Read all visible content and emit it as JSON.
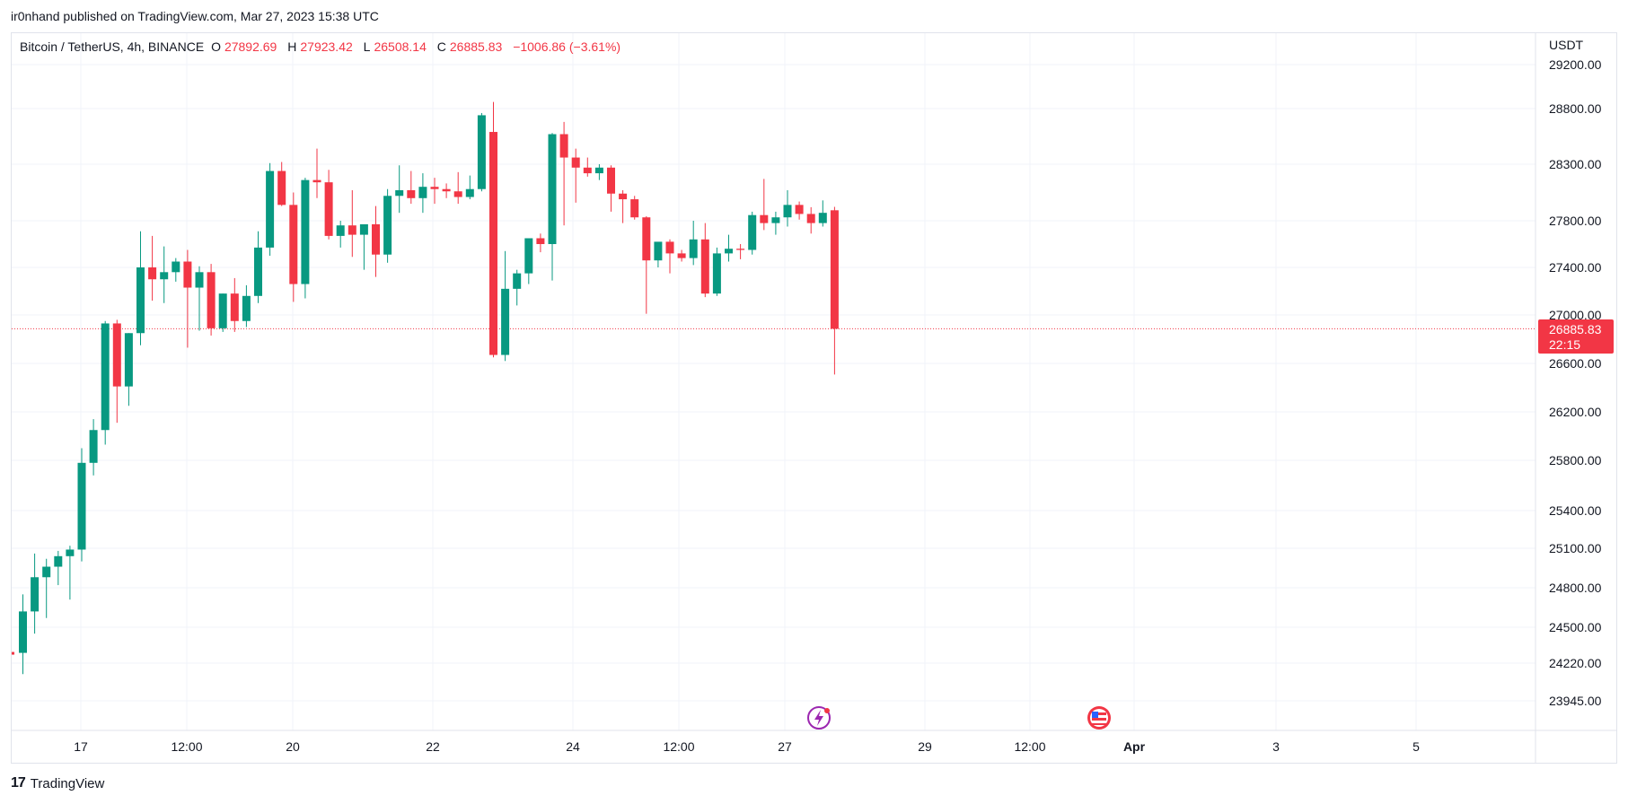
{
  "header": {
    "published": "ir0nhand published on TradingView.com, Mar 27, 2023 15:38 UTC"
  },
  "legend": {
    "symbol": "Bitcoin / TetherUS, 4h, BINANCE",
    "o_label": "O",
    "o_value": "27892.69",
    "h_label": "H",
    "h_value": "27923.42",
    "l_label": "L",
    "l_value": "26508.14",
    "c_label": "C",
    "c_value": "26885.83",
    "change": "−1006.86 (−3.61%)"
  },
  "footer": {
    "brand": "TradingView",
    "logo_mark": "17"
  },
  "colors": {
    "up": "#089981",
    "down": "#f23645",
    "grid": "#f0f3fa",
    "text": "#131722"
  },
  "chart_data": {
    "type": "candlestick",
    "symbol": "Bitcoin / TetherUS",
    "interval": "4h",
    "exchange": "BINANCE",
    "currency": "USDT",
    "y_ticks": [
      "29200.00",
      "28800.00",
      "28300.00",
      "27800.00",
      "27400.00",
      "27000.00",
      "26600.00",
      "26200.00",
      "25800.00",
      "25400.00",
      "25100.00",
      "24800.00",
      "24500.00",
      "24220.00",
      "23945.00"
    ],
    "x_ticks": [
      "17",
      "12:00",
      "20",
      "22",
      "24",
      "12:00",
      "27",
      "29",
      "12:00",
      "Apr",
      "3",
      "5"
    ],
    "last_price": "26885.83",
    "countdown": "22:15",
    "candles": [
      {
        "o": 24300,
        "h": 24750,
        "l": 24140,
        "c": 24620
      },
      {
        "o": 24620,
        "h": 25060,
        "l": 24450,
        "c": 24880
      },
      {
        "o": 24880,
        "h": 25020,
        "l": 24570,
        "c": 24960
      },
      {
        "o": 24960,
        "h": 25080,
        "l": 24820,
        "c": 25040
      },
      {
        "o": 25040,
        "h": 25120,
        "l": 24710,
        "c": 25090
      },
      {
        "o": 25090,
        "h": 25900,
        "l": 25000,
        "c": 25780
      },
      {
        "o": 25780,
        "h": 26140,
        "l": 25680,
        "c": 26050
      },
      {
        "o": 26050,
        "h": 26950,
        "l": 25930,
        "c": 26930
      },
      {
        "o": 26930,
        "h": 26960,
        "l": 26110,
        "c": 26410
      },
      {
        "o": 26410,
        "h": 26850,
        "l": 26250,
        "c": 26850
      },
      {
        "o": 26850,
        "h": 27710,
        "l": 26750,
        "c": 27400
      },
      {
        "o": 27400,
        "h": 27670,
        "l": 27120,
        "c": 27300
      },
      {
        "o": 27300,
        "h": 27580,
        "l": 27100,
        "c": 27360
      },
      {
        "o": 27360,
        "h": 27480,
        "l": 27280,
        "c": 27450
      },
      {
        "o": 27450,
        "h": 27550,
        "l": 26730,
        "c": 27230
      },
      {
        "o": 27230,
        "h": 27410,
        "l": 26870,
        "c": 27360
      },
      {
        "o": 27360,
        "h": 27430,
        "l": 26830,
        "c": 26890
      },
      {
        "o": 26890,
        "h": 27180,
        "l": 26860,
        "c": 27180
      },
      {
        "o": 27180,
        "h": 27310,
        "l": 26860,
        "c": 26950
      },
      {
        "o": 26950,
        "h": 27250,
        "l": 26900,
        "c": 27160
      },
      {
        "o": 27160,
        "h": 27710,
        "l": 27100,
        "c": 27570
      },
      {
        "o": 27570,
        "h": 28310,
        "l": 27500,
        "c": 28240
      },
      {
        "o": 28240,
        "h": 28320,
        "l": 27930,
        "c": 27940
      },
      {
        "o": 27940,
        "h": 28050,
        "l": 27110,
        "c": 27260
      },
      {
        "o": 27260,
        "h": 28180,
        "l": 27140,
        "c": 28160
      },
      {
        "o": 28160,
        "h": 28440,
        "l": 28000,
        "c": 28140
      },
      {
        "o": 28140,
        "h": 28250,
        "l": 27640,
        "c": 27670
      },
      {
        "o": 27670,
        "h": 27800,
        "l": 27570,
        "c": 27760
      },
      {
        "o": 27760,
        "h": 28070,
        "l": 27490,
        "c": 27680
      },
      {
        "o": 27680,
        "h": 27750,
        "l": 27380,
        "c": 27770
      },
      {
        "o": 27770,
        "h": 27930,
        "l": 27320,
        "c": 27510
      },
      {
        "o": 27510,
        "h": 28080,
        "l": 27440,
        "c": 28020
      },
      {
        "o": 28020,
        "h": 28290,
        "l": 27870,
        "c": 28070
      },
      {
        "o": 28070,
        "h": 28240,
        "l": 27950,
        "c": 28000
      },
      {
        "o": 28000,
        "h": 28220,
        "l": 27870,
        "c": 28100
      },
      {
        "o": 28100,
        "h": 28180,
        "l": 27950,
        "c": 28080
      },
      {
        "o": 28080,
        "h": 28130,
        "l": 28000,
        "c": 28060
      },
      {
        "o": 28060,
        "h": 28230,
        "l": 27950,
        "c": 28010
      },
      {
        "o": 28010,
        "h": 28200,
        "l": 27990,
        "c": 28080
      },
      {
        "o": 28080,
        "h": 28760,
        "l": 28060,
        "c": 28740
      },
      {
        "o": 28590,
        "h": 28860,
        "l": 26650,
        "c": 26670
      },
      {
        "o": 26670,
        "h": 27540,
        "l": 26620,
        "c": 27220
      },
      {
        "o": 27220,
        "h": 27380,
        "l": 27080,
        "c": 27350
      },
      {
        "o": 27350,
        "h": 27640,
        "l": 27260,
        "c": 27650
      },
      {
        "o": 27650,
        "h": 27690,
        "l": 27530,
        "c": 27600
      },
      {
        "o": 27600,
        "h": 28580,
        "l": 27290,
        "c": 28570
      },
      {
        "o": 28570,
        "h": 28680,
        "l": 27760,
        "c": 28360
      },
      {
        "o": 28360,
        "h": 28440,
        "l": 27960,
        "c": 28270
      },
      {
        "o": 28270,
        "h": 28360,
        "l": 28190,
        "c": 28220
      },
      {
        "o": 28220,
        "h": 28300,
        "l": 28160,
        "c": 28270
      },
      {
        "o": 28270,
        "h": 28290,
        "l": 27880,
        "c": 28040
      },
      {
        "o": 28040,
        "h": 28070,
        "l": 27780,
        "c": 27990
      },
      {
        "o": 27990,
        "h": 28020,
        "l": 27810,
        "c": 27830
      },
      {
        "o": 27830,
        "h": 27840,
        "l": 27010,
        "c": 27460
      },
      {
        "o": 27460,
        "h": 27580,
        "l": 27400,
        "c": 27620
      },
      {
        "o": 27620,
        "h": 27640,
        "l": 27350,
        "c": 27520
      },
      {
        "o": 27520,
        "h": 27550,
        "l": 27450,
        "c": 27480
      },
      {
        "o": 27480,
        "h": 27800,
        "l": 27420,
        "c": 27640
      },
      {
        "o": 27640,
        "h": 27780,
        "l": 27150,
        "c": 27180
      },
      {
        "o": 27180,
        "h": 27570,
        "l": 27160,
        "c": 27520
      },
      {
        "o": 27520,
        "h": 27680,
        "l": 27450,
        "c": 27560
      },
      {
        "o": 27560,
        "h": 27600,
        "l": 27470,
        "c": 27550
      },
      {
        "o": 27550,
        "h": 27880,
        "l": 27510,
        "c": 27850
      },
      {
        "o": 27850,
        "h": 28170,
        "l": 27720,
        "c": 27780
      },
      {
        "o": 27780,
        "h": 27880,
        "l": 27680,
        "c": 27830
      },
      {
        "o": 27830,
        "h": 28070,
        "l": 27750,
        "c": 27940
      },
      {
        "o": 27940,
        "h": 27970,
        "l": 27810,
        "c": 27860
      },
      {
        "o": 27860,
        "h": 27920,
        "l": 27690,
        "c": 27780
      },
      {
        "o": 27780,
        "h": 27980,
        "l": 27750,
        "c": 27870
      },
      {
        "o": 27892.69,
        "h": 27923.42,
        "l": 26508.14,
        "c": 26885.83
      }
    ]
  }
}
